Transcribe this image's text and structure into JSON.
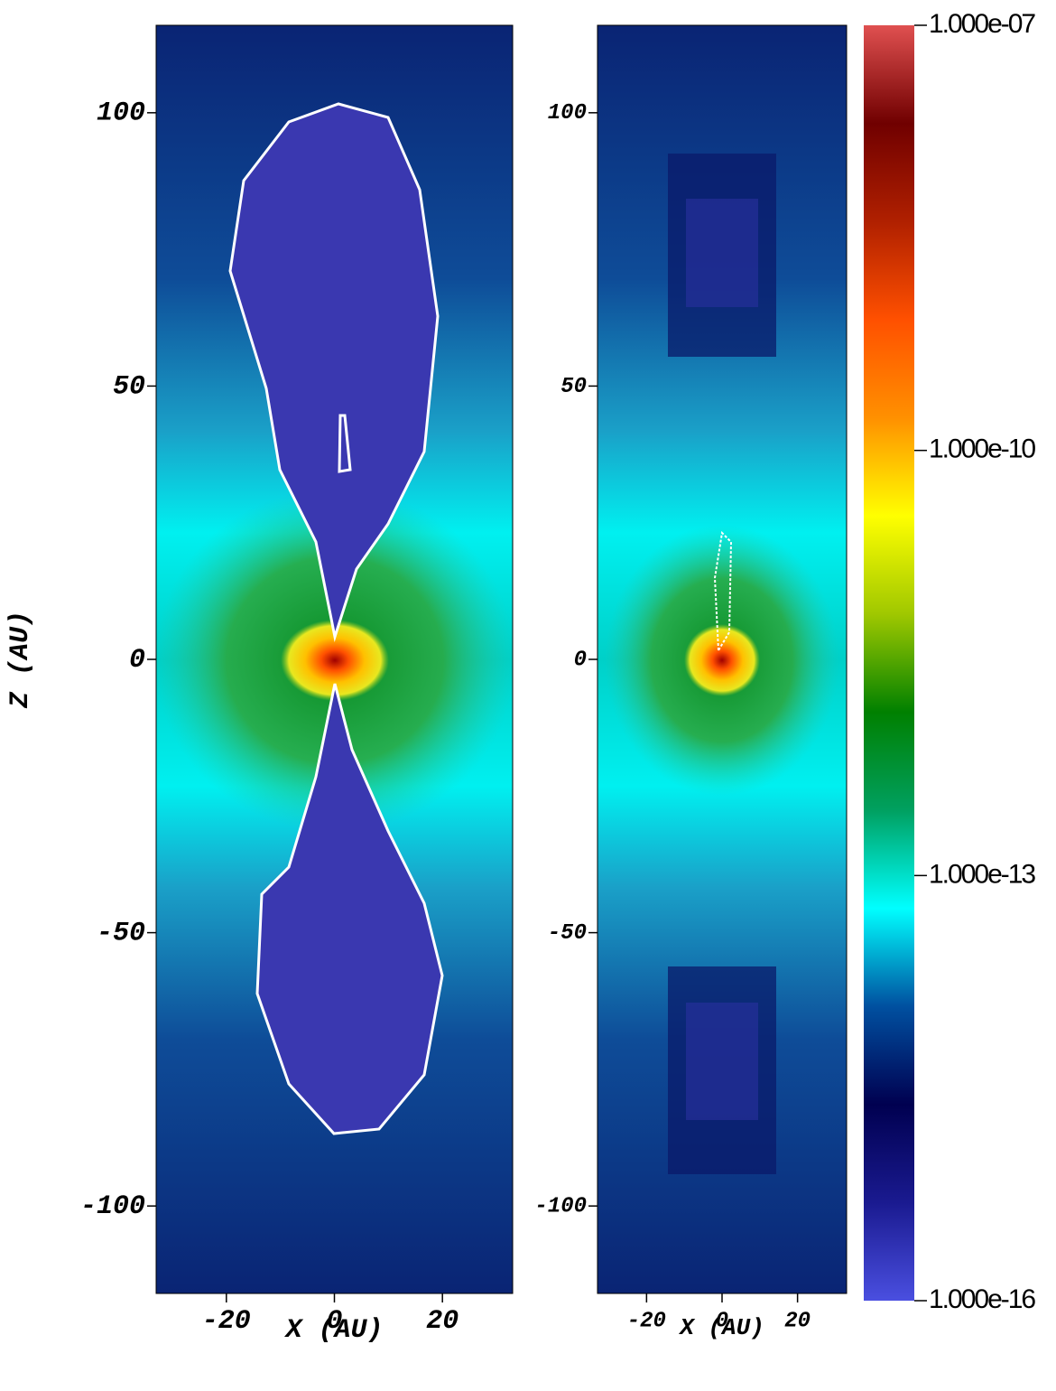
{
  "chart_data": [
    {
      "type": "heatmap",
      "xlabel": "X (AU)",
      "ylabel": "Z (AU)",
      "xlim": [
        -33,
        33
      ],
      "ylim": [
        -116,
        116
      ],
      "xticks": [
        -20,
        0,
        20
      ],
      "yticks": [
        -100,
        -50,
        0,
        50,
        100
      ]
    },
    {
      "type": "heatmap",
      "xlabel": "X (AU)",
      "xlim": [
        -33,
        33
      ],
      "ylim": [
        -116,
        116
      ],
      "xticks": [
        -20,
        0,
        20
      ],
      "yticks": [
        -100,
        -50,
        0,
        50,
        100
      ]
    },
    {
      "type": "colorbar",
      "scale": "log",
      "lim": [
        1e-16,
        1e-07
      ],
      "colors": [
        "#4a4fe0",
        "#1a1a90",
        "#000050",
        "#0050a0",
        "#00ffff",
        "#00a060",
        "#008000",
        "#a0c800",
        "#ffff00",
        "#ff9000",
        "#ff5000",
        "#b02000",
        "#700000",
        "#e05050"
      ],
      "ticks": [
        {
          "value": 1e-16,
          "label": "1.000e-16"
        },
        {
          "value": 1e-13,
          "label": "1.000e-13"
        },
        {
          "value": 1e-10,
          "label": "1.000e-10"
        },
        {
          "value": 1e-07,
          "label": "1.000e-07"
        }
      ]
    }
  ]
}
